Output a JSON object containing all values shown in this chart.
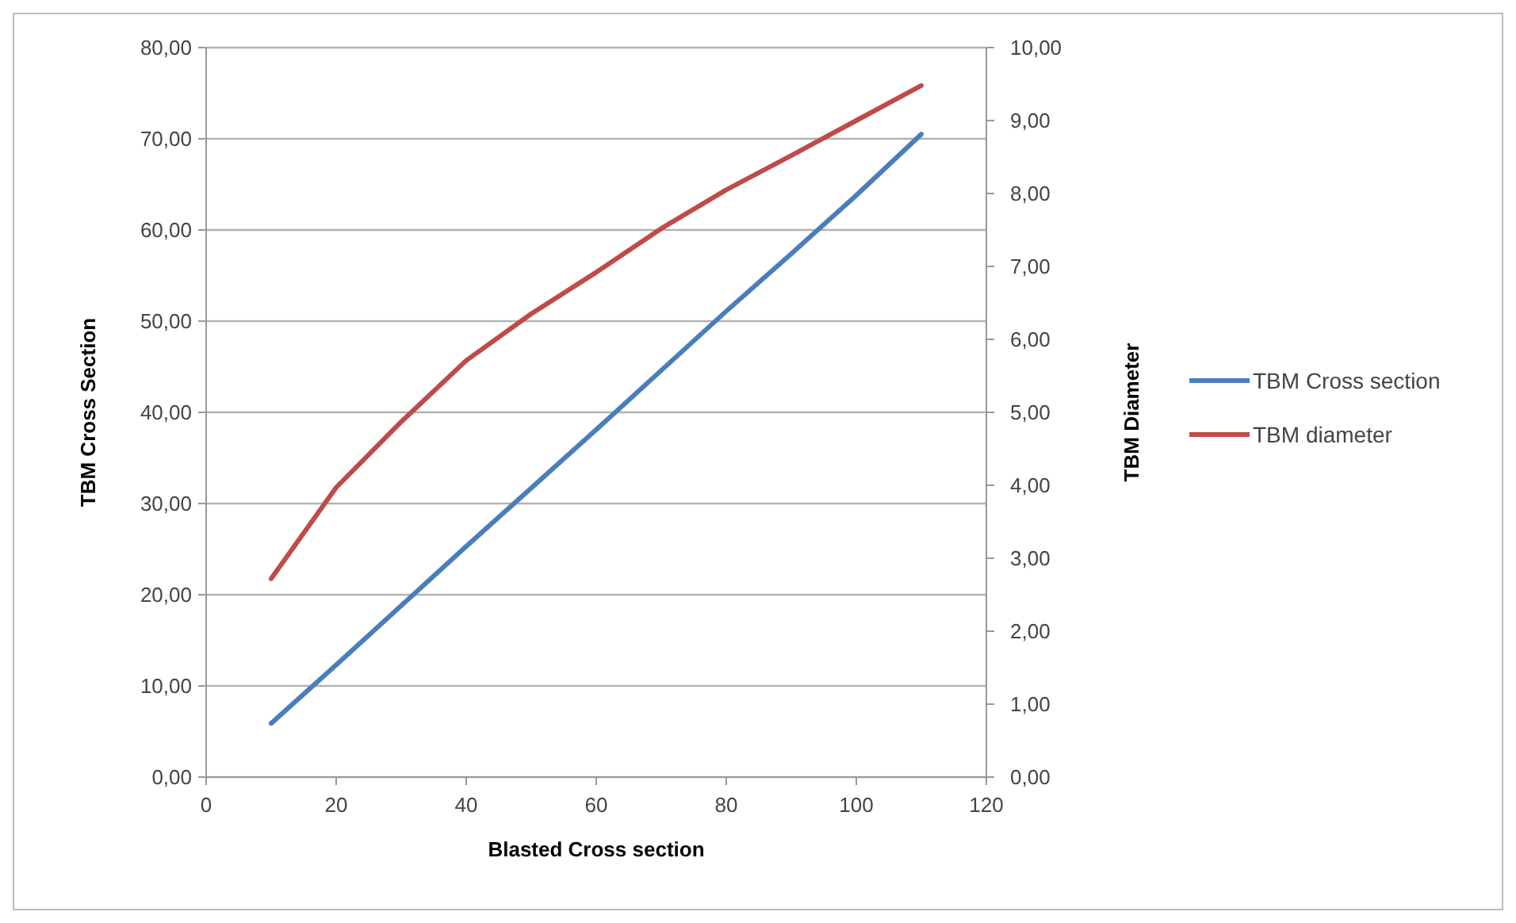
{
  "chart_data": {
    "type": "line",
    "xlabel": "Blasted Cross section",
    "ylabel": "TBM Cross Section",
    "y2label": "TBM Diameter",
    "x": [
      10,
      20,
      30,
      40,
      50,
      60,
      70,
      80,
      90,
      100,
      110
    ],
    "series": [
      {
        "name": "TBM Cross section",
        "color": "#4a7ebb",
        "values": [
          5.9,
          12.3,
          18.8,
          25.3,
          31.7,
          38.1,
          44.6,
          51.1,
          57.4,
          63.8,
          70.5
        ]
      },
      {
        "name": "TBM diameter",
        "color": "#be4b48",
        "axis": "y2",
        "values": [
          2.72,
          3.97,
          4.87,
          5.71,
          6.35,
          6.92,
          7.52,
          8.05,
          8.52,
          9.0,
          9.48
        ]
      }
    ],
    "xlim": [
      0,
      120
    ],
    "xticks": [
      0,
      20,
      40,
      60,
      80,
      100,
      120
    ],
    "ylim": [
      0,
      80
    ],
    "yticks": [
      {
        "value": 0,
        "label": "0,00"
      },
      {
        "value": 10,
        "label": "10,00"
      },
      {
        "value": 20,
        "label": "20,00"
      },
      {
        "value": 30,
        "label": "30,00"
      },
      {
        "value": 40,
        "label": "40,00"
      },
      {
        "value": 50,
        "label": "50,00"
      },
      {
        "value": 60,
        "label": "60,00"
      },
      {
        "value": 70,
        "label": "70,00"
      },
      {
        "value": 80,
        "label": "80,00"
      }
    ],
    "y2lim": [
      0,
      10
    ],
    "y2ticks": [
      {
        "value": 0,
        "label": "0,00"
      },
      {
        "value": 1,
        "label": "1,00"
      },
      {
        "value": 2,
        "label": "2,00"
      },
      {
        "value": 3,
        "label": "3,00"
      },
      {
        "value": 4,
        "label": "4,00"
      },
      {
        "value": 5,
        "label": "5,00"
      },
      {
        "value": 6,
        "label": "6,00"
      },
      {
        "value": 7,
        "label": "7,00"
      },
      {
        "value": 8,
        "label": "8,00"
      },
      {
        "value": 9,
        "label": "9,00"
      },
      {
        "value": 10,
        "label": "10,00"
      }
    ],
    "grid": "y",
    "legend": "right",
    "line_style": "solid",
    "marker": "none"
  }
}
